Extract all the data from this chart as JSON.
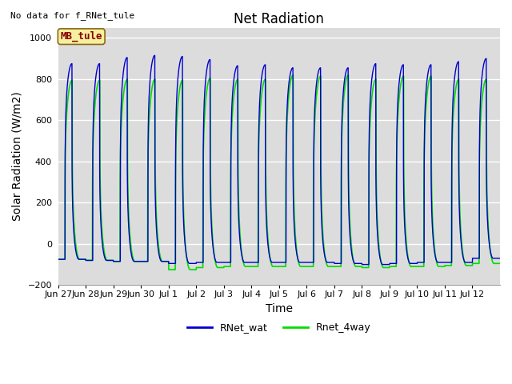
{
  "title": "Net Radiation",
  "xlabel": "Time",
  "ylabel": "Solar Radiation (W/m2)",
  "top_left_text": "No data for f_RNet_tule",
  "annotation_box_text": "MB_tule",
  "annotation_box_color": "#f5f0a0",
  "annotation_box_border": "#8b6914",
  "annotation_text_color": "#8b0000",
  "ylim": [
    -200,
    1050
  ],
  "yticks": [
    -200,
    0,
    200,
    400,
    600,
    800,
    1000
  ],
  "background_color": "#dcdcdc",
  "grid_color": "#c8c8c8",
  "line1_color": "#0000cd",
  "line2_color": "#00dd00",
  "legend_labels": [
    "RNet_wat",
    "Rnet_4way"
  ],
  "num_days": 16,
  "x_tick_labels": [
    "Jun 27",
    "Jun 28",
    "Jun 29",
    "Jun 30",
    "Jul 1",
    "Jul 2",
    "Jul 3",
    "Jul 4",
    "Jul 5",
    "Jul 6",
    "Jul 7",
    "Jul 8",
    "Jul 9",
    "Jul 10",
    "Jul 11",
    "Jul 12"
  ],
  "points_per_day": 480,
  "day_peak_blue": [
    875,
    875,
    905,
    915,
    910,
    895,
    865,
    870,
    855,
    855,
    855,
    875,
    870,
    870,
    885,
    900
  ],
  "day_peak_green": [
    795,
    795,
    800,
    800,
    795,
    805,
    800,
    800,
    820,
    815,
    820,
    800,
    815,
    815,
    800,
    800
  ],
  "day_night_blue": [
    -75,
    -80,
    -85,
    -85,
    -95,
    -90,
    -90,
    -90,
    -90,
    -90,
    -95,
    -100,
    -95,
    -90,
    -90,
    -70
  ],
  "day_night_green": [
    -75,
    -80,
    -85,
    -85,
    -125,
    -115,
    -110,
    -110,
    -110,
    -110,
    -110,
    -115,
    -110,
    -110,
    -105,
    -95
  ],
  "title_fontsize": 12,
  "axis_fontsize": 10,
  "tick_fontsize": 8,
  "legend_fontsize": 9
}
